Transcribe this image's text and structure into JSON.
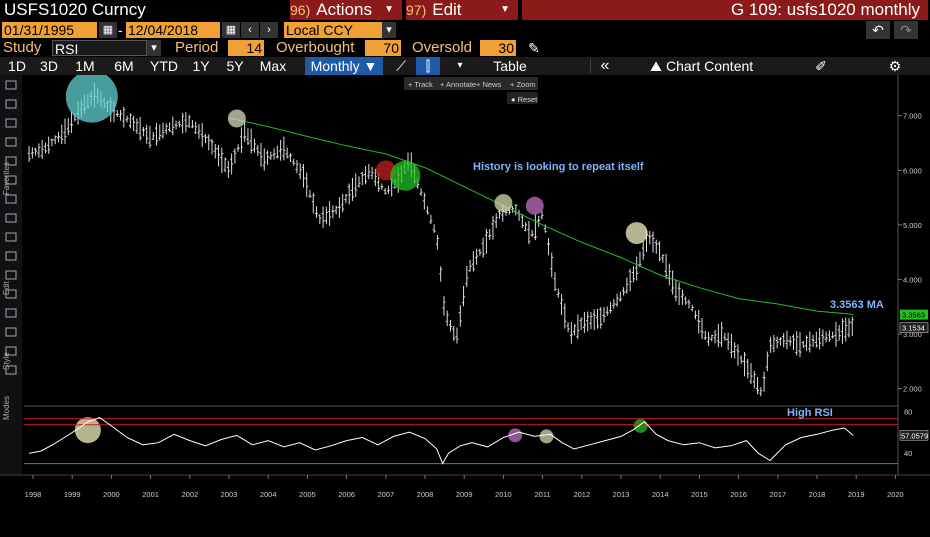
{
  "header": {
    "ticker": "USFS1020 Curncy",
    "actions_num": "96)",
    "actions_label": "Actions",
    "edit_num": "97)",
    "edit_label": "Edit",
    "title": "G 109: usfs1020 monthly"
  },
  "range": {
    "start_date": "01/31/1995",
    "dash": "-",
    "end_date": "12/04/2018",
    "currency": "Local CCY"
  },
  "study": {
    "label": "Study",
    "value": "RSI",
    "period_label": "Period",
    "period": "14",
    "overbought_label": "Overbought",
    "overbought": "70",
    "oversold_label": "Oversold",
    "oversold": "30"
  },
  "toolbar": {
    "periods": [
      "1D",
      "3D",
      "1M",
      "6M",
      "YTD",
      "1Y",
      "5Y",
      "Max"
    ],
    "frequency": "Monthly",
    "table_label": "Table",
    "chart_content_label": "Chart Content",
    "chart_tools": [
      "Track",
      "Annotate",
      "News",
      "Zoom"
    ],
    "reset_label": "Reset"
  },
  "side_tabs": [
    "Favorites",
    "Edit",
    "Style",
    "Modes"
  ],
  "colors": {
    "ma_line": "#22c022",
    "price_bars": "#dddddd",
    "rsi_line": "#ffffff",
    "overbought_line": "#d02020",
    "oversold_line": "#22b022",
    "annotation_text": "#7fb4ff",
    "brand_red": "#8b1a1a",
    "input_orange": "#f0a035"
  },
  "chart_data": {
    "type": "line",
    "x_ticks": [
      "1998",
      "1999",
      "2000",
      "2001",
      "2002",
      "2003",
      "2004",
      "2005",
      "2006",
      "2007",
      "2008",
      "2009",
      "2010",
      "2011",
      "2012",
      "2013",
      "2014",
      "2015",
      "2016",
      "2017",
      "2018",
      "2019",
      "2020"
    ],
    "price_axis": {
      "ticks": [
        "7.000",
        "6.000",
        "5.000",
        "4.000",
        "3.000",
        "2.000"
      ],
      "ylim": [
        1.7,
        7.6
      ]
    },
    "price_series": {
      "x": [
        1997.9,
        1998.3,
        1998.8,
        1999.3,
        1999.6,
        2000.0,
        2000.5,
        2001.0,
        2001.5,
        2002.0,
        2002.5,
        2003.0,
        2003.4,
        2003.9,
        2004.4,
        2004.9,
        2005.3,
        2005.8,
        2006.2,
        2006.6,
        2007.0,
        2007.3,
        2007.6,
        2008.0,
        2008.3,
        2008.5,
        2008.8,
        2009.1,
        2009.5,
        2009.9,
        2010.3,
        2010.7,
        2011.0,
        2011.3,
        2011.7,
        2012.0,
        2012.5,
        2013.0,
        2013.4,
        2013.7,
        2014.0,
        2014.4,
        2014.8,
        2015.2,
        2015.6,
        2016.0,
        2016.3,
        2016.6,
        2016.8,
        2017.2,
        2017.6,
        2018.0,
        2018.5,
        2018.92
      ],
      "y": [
        6.3,
        6.4,
        6.7,
        7.2,
        7.4,
        7.1,
        6.9,
        6.6,
        6.8,
        6.9,
        6.5,
        6.0,
        6.7,
        6.2,
        6.4,
        5.9,
        5.1,
        5.3,
        5.7,
        6.0,
        5.6,
        5.8,
        6.2,
        5.4,
        4.8,
        3.4,
        2.9,
        4.2,
        4.6,
        5.2,
        5.3,
        4.8,
        5.2,
        4.0,
        3.0,
        3.2,
        3.3,
        3.7,
        4.2,
        4.8,
        4.5,
        3.8,
        3.5,
        2.9,
        3.0,
        2.6,
        2.3,
        1.9,
        2.8,
        2.9,
        2.8,
        2.9,
        3.0,
        3.15
      ]
    },
    "ma_series": {
      "name": "3.3563 MA",
      "x": [
        2003.0,
        2004.0,
        2005.0,
        2006.0,
        2007.0,
        2008.0,
        2009.0,
        2010.0,
        2011.0,
        2012.0,
        2013.0,
        2014.0,
        2015.0,
        2016.0,
        2017.0,
        2018.0,
        2018.92
      ],
      "y": [
        6.96,
        6.8,
        6.62,
        6.45,
        6.3,
        6.05,
        5.7,
        5.35,
        5.0,
        4.68,
        4.4,
        4.08,
        3.85,
        3.65,
        3.55,
        3.42,
        3.36
      ]
    },
    "last_value_labels": [
      {
        "value": "3.3563",
        "color": "#22c022"
      },
      {
        "value": "3.1534",
        "color": "#dddddd"
      }
    ],
    "ma_label": "3.3563 MA",
    "annotation": "History is looking to repeat itself",
    "rsi_panel": {
      "label": "High RSI",
      "ticks": [
        "80",
        "40"
      ],
      "last_value": "57.0579",
      "overbought": 70,
      "oversold": 30,
      "ylim": [
        22,
        86
      ],
      "x": [
        1997.9,
        1998.2,
        1998.5,
        1998.8,
        1999.1,
        1999.4,
        1999.7,
        2000.0,
        2000.4,
        2000.8,
        2001.2,
        2001.6,
        2002.0,
        2002.4,
        2002.8,
        2003.2,
        2003.6,
        2004.0,
        2004.4,
        2004.8,
        2005.2,
        2005.6,
        2006.0,
        2006.4,
        2006.8,
        2007.2,
        2007.6,
        2008.0,
        2008.3,
        2008.45,
        2008.6,
        2008.9,
        2009.2,
        2009.6,
        2010.0,
        2010.4,
        2010.8,
        2011.2,
        2011.5,
        2011.8,
        2012.2,
        2012.6,
        2013.0,
        2013.3,
        2013.6,
        2013.9,
        2014.2,
        2014.6,
        2015.0,
        2015.4,
        2015.8,
        2016.2,
        2016.5,
        2016.8,
        2017.2,
        2017.6,
        2018.0,
        2018.4,
        2018.7,
        2018.92
      ],
      "y": [
        40,
        42,
        48,
        55,
        62,
        70,
        74,
        66,
        55,
        48,
        50,
        58,
        52,
        47,
        53,
        57,
        48,
        52,
        46,
        50,
        43,
        47,
        52,
        55,
        48,
        56,
        60,
        54,
        44,
        30,
        40,
        47,
        50,
        46,
        55,
        60,
        56,
        58,
        50,
        44,
        48,
        52,
        56,
        62,
        70,
        58,
        52,
        48,
        50,
        45,
        47,
        52,
        40,
        33,
        48,
        55,
        58,
        62,
        64,
        57
      ]
    },
    "highlight_circles": [
      {
        "panel": "price",
        "x": 1999.5,
        "y": 7.35,
        "color": "#5fd0d0"
      },
      {
        "panel": "price",
        "x": 2003.2,
        "y": 6.95,
        "color": "#d8d8c0"
      },
      {
        "panel": "price",
        "x": 2007.0,
        "y": 6.0,
        "color": "#c02020"
      },
      {
        "panel": "price",
        "x": 2007.5,
        "y": 5.9,
        "color": "#22c022"
      },
      {
        "panel": "price",
        "x": 2010.0,
        "y": 5.4,
        "color": "#d8d8b0"
      },
      {
        "panel": "price",
        "x": 2010.8,
        "y": 5.35,
        "color": "#c070c0"
      },
      {
        "panel": "price",
        "x": 2013.4,
        "y": 4.85,
        "color": "#f0f0c0"
      },
      {
        "panel": "rsi",
        "x": 1999.4,
        "y": 62,
        "color": "#f0f0c0"
      },
      {
        "panel": "rsi",
        "x": 2010.3,
        "y": 57,
        "color": "#c070c0"
      },
      {
        "panel": "rsi",
        "x": 2011.1,
        "y": 56,
        "color": "#d8d8b0"
      },
      {
        "panel": "rsi",
        "x": 2013.5,
        "y": 66,
        "color": "#22c022"
      }
    ]
  }
}
